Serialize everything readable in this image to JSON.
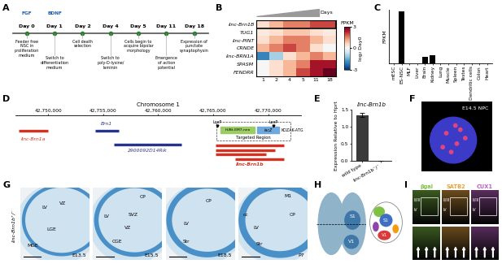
{
  "panel_labels": [
    "A",
    "B",
    "C",
    "D",
    "E",
    "F",
    "G",
    "H",
    "I"
  ],
  "timeline": {
    "factors": [
      "FGF",
      "BDNF"
    ],
    "days": [
      {
        "label": "Day 0",
        "event": "Feeder free\nNSC in\nproliferation\nmedium"
      },
      {
        "label": "Day 1",
        "event": "Switch to\ndifferentiation\nmedium"
      },
      {
        "label": "Day 2",
        "event": "Cell death\nselection"
      },
      {
        "label": "Day 4",
        "event": "Switch to\npoly-D-lysine/\nlaminin"
      },
      {
        "label": "Day 5",
        "event": "Cells begin to\nacquire bipolar\nmorphology"
      },
      {
        "label": "Day 11",
        "event": "Emergence\nof action\npotential"
      },
      {
        "label": "Day 18",
        "event": "Expression of\npunctate\nsynaptophysin"
      }
    ]
  },
  "chart_data": [
    {
      "type": "heatmap",
      "axis_title": "Days",
      "categories": [
        "1",
        "2",
        "4",
        "5",
        "11",
        "18"
      ],
      "rows": [
        "linc-Brn1B",
        "TUG1",
        "linc-PINT",
        "CRNDE",
        "linc-BRN1A",
        "SPASM",
        "FENDRR"
      ],
      "cells": [
        [
          0.5,
          1.0,
          1.5,
          1.5,
          2.0,
          2.0
        ],
        [
          0.3,
          0.5,
          0.8,
          0.8,
          0.5,
          0.3
        ],
        [
          0.5,
          1.0,
          1.5,
          1.5,
          1.0,
          0.5
        ],
        [
          1.0,
          1.5,
          2.0,
          1.5,
          0.5,
          0.0
        ],
        [
          -2.0,
          -1.0,
          0.5,
          1.0,
          1.5,
          1.0
        ],
        [
          0.0,
          0.5,
          1.0,
          1.5,
          2.5,
          2.5
        ],
        [
          0.0,
          0.5,
          1.0,
          2.0,
          2.5,
          3.0
        ]
      ],
      "colorbar": {
        "title": "FPKM",
        "label": "log₂ Day0",
        "range": [
          -3,
          3
        ],
        "ticks": [
          -3,
          0,
          3
        ]
      }
    },
    {
      "type": "bar",
      "y_label": "FPKM",
      "categories": [
        "mESC",
        "ES-NSC",
        "MLF",
        "Liver",
        "Brain",
        "Kidney",
        "Lung",
        "Muscle",
        "Spleen",
        "Testes",
        "Dendritic cells",
        "Colon",
        "Heart"
      ],
      "values": [
        0,
        1.25,
        0,
        0,
        0.15,
        0.18,
        0,
        0,
        0,
        0,
        0,
        0,
        0
      ],
      "color": "#000000",
      "ylim": [
        0,
        1.3
      ],
      "tick_labels": "x"
    },
    {
      "type": "bar",
      "title": "linc-Brn1b",
      "y_label": "Expression Relative to Hprt",
      "categories": [
        "wild type",
        "linc-Brn1b⁻/⁻"
      ],
      "values": [
        1.35,
        0
      ],
      "errors": [
        0.07,
        0
      ],
      "color": "#3a3a3a",
      "ylim": [
        0.0,
        1.5
      ],
      "yticks": [
        0.0,
        0.5,
        1.0,
        1.5
      ]
    }
  ],
  "locus": {
    "title": "Chromosome 1",
    "xlim": [
      42747000,
      42773000
    ],
    "xticks": [
      {
        "value": 42750000,
        "label": "42,750,000"
      },
      {
        "value": 42755000,
        "label": "42,755,000"
      },
      {
        "value": 42760000,
        "label": "42,760,000"
      },
      {
        "value": 42765000,
        "label": "42,765,000"
      },
      {
        "value": 42770000,
        "label": "42,770,000"
      }
    ],
    "genes": [
      {
        "name": "linc-Brn1a",
        "color": "#d7301f",
        "isoforms": [
          [
            42747300,
            42750000
          ]
        ]
      },
      {
        "name": "Brn1",
        "color": "#26338c",
        "isoforms": [
          [
            42754300,
            42756400
          ]
        ]
      },
      {
        "name": "2900092D14Rik",
        "color": "#26338c",
        "isoforms": [
          [
            42756000,
            42762100
          ]
        ]
      },
      {
        "name": "linc-Brn1b",
        "color": "#d7301f",
        "isoforms": [
          [
            42765200,
            42771400
          ],
          [
            42765200,
            42770600
          ],
          [
            42765200,
            42769800
          ],
          [
            42767000,
            42771400
          ]
        ]
      }
    ],
    "targeted_region": {
      "label": "Targeted Region",
      "start": 42765300,
      "end": 42772000,
      "loxp_label": "LoxP",
      "loxp": [
        42765400,
        42770500
      ],
      "cassette": {
        "label": "hUBt-EM7-neo",
        "start": 42765700,
        "end": 42768800
      },
      "reporter": {
        "label": "lacZ",
        "start": 42769000,
        "end": 42771000
      },
      "kozak": "KOZAK-ATG"
    }
  },
  "npc_image": {
    "label": "E14.5 NPC"
  },
  "sections": {
    "genotype_label": "linc-Brn1b⁺/⁻",
    "panels": [
      {
        "stage": "E13.5",
        "regions": [
          "LV",
          "VZ",
          "LGE",
          "MGE"
        ]
      },
      {
        "stage": "E15.5",
        "regions": [
          "CP",
          "LV",
          "SVZ",
          "VZ",
          "CGE"
        ]
      },
      {
        "stage": "E18.5",
        "regions": [
          "CP",
          "LV",
          "Str"
        ]
      },
      {
        "stage": "P7",
        "regions": [
          "M1",
          "CP",
          "LV",
          "Str",
          "cc"
        ]
      }
    ]
  },
  "brain": {
    "left_labels": [
      "S1",
      "V1"
    ],
    "right_labels": [
      "S1",
      "V1"
    ]
  },
  "staining": {
    "columns": [
      {
        "name": "βgal",
        "color": "#7dc242"
      },
      {
        "name": "SATB2",
        "color": "#e8a13a"
      },
      {
        "name": "CUX1",
        "color": "#c05fc9"
      }
    ],
    "layers": [
      "II/III",
      "IV"
    ]
  }
}
